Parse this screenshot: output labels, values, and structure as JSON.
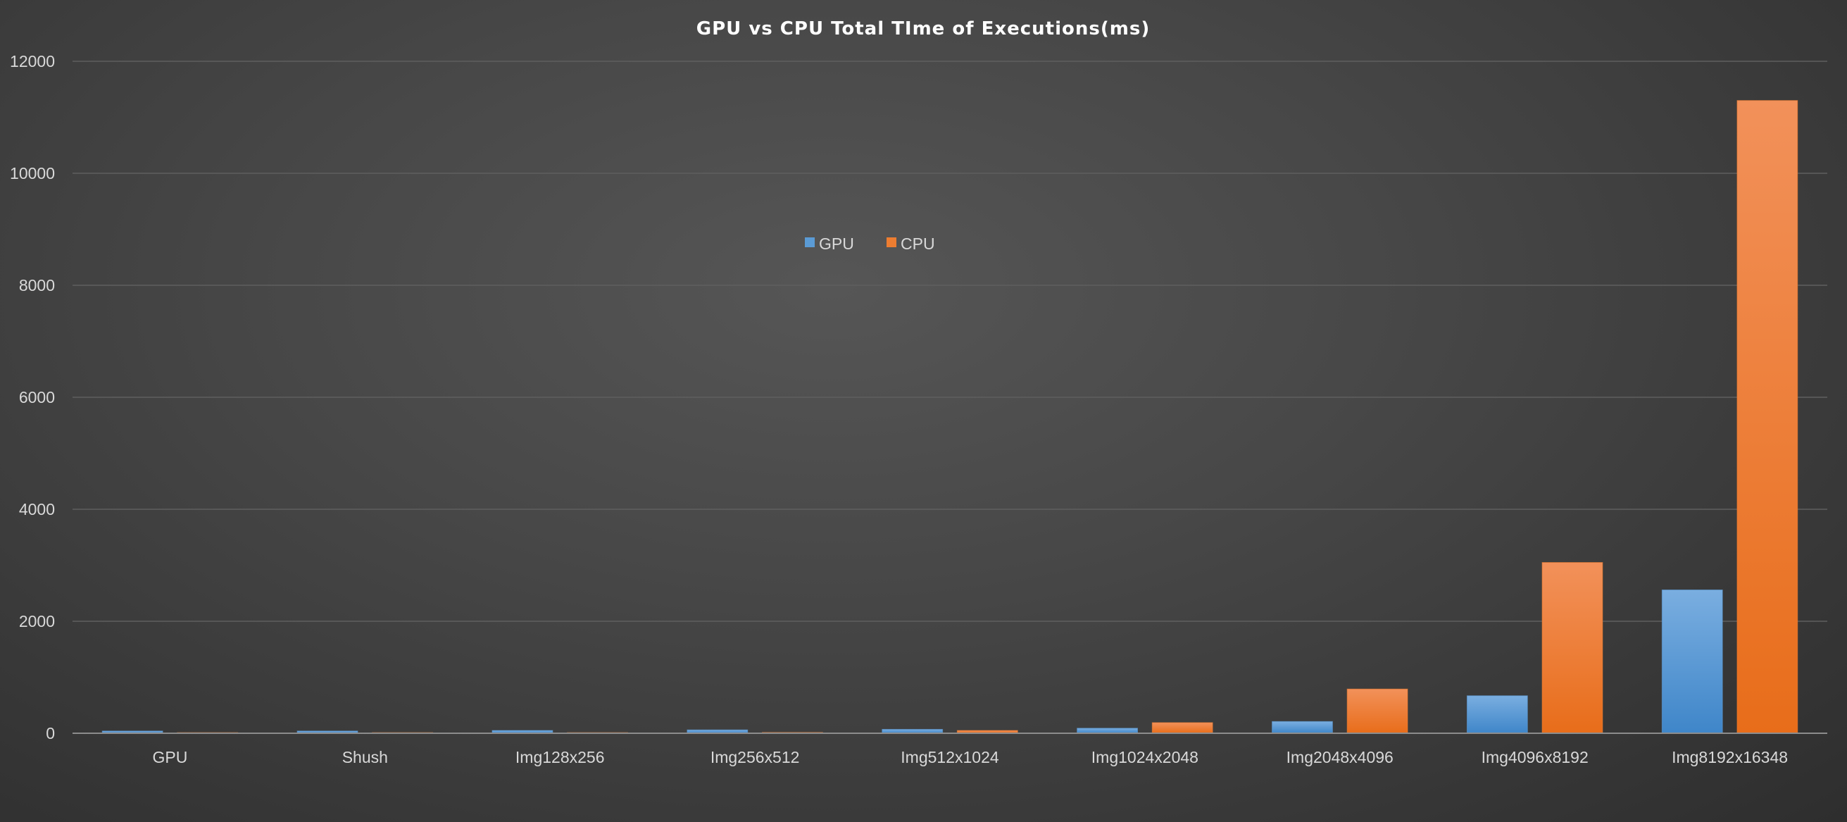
{
  "chart_data": {
    "type": "bar",
    "title": "GPU vs CPU Total TIme of Executions(ms)",
    "xlabel": "",
    "ylabel": "",
    "categories": [
      "GPU",
      "Shush",
      "Img128x256",
      "Img256x512",
      "Img512x1024",
      "Img1024x2048",
      "Img2048x4096",
      "Img4096x8192",
      "Img8192x16348"
    ],
    "series": [
      {
        "name": "GPU",
        "color": "#5b9bd5",
        "values": [
          40,
          40,
          50,
          60,
          70,
          90,
          210,
          670,
          2560
        ]
      },
      {
        "name": "CPU",
        "color": "#ed7d31",
        "values": [
          5,
          5,
          10,
          15,
          50,
          190,
          790,
          3050,
          11300
        ]
      }
    ],
    "ylim": [
      0,
      12000
    ],
    "yticks": [
      0,
      2000,
      4000,
      6000,
      8000,
      10000,
      12000
    ],
    "grid": true,
    "legend_position": "top-center"
  }
}
